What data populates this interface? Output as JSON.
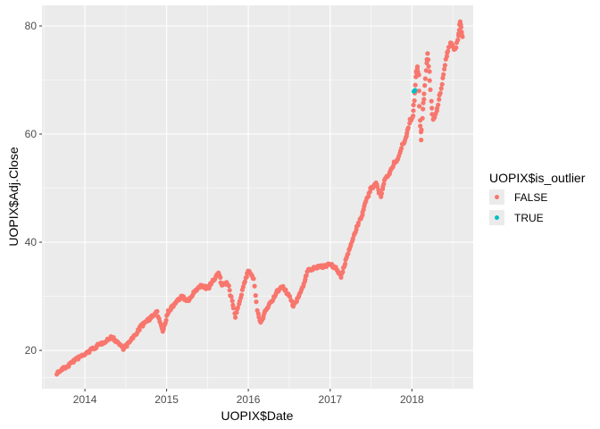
{
  "chart_data": {
    "type": "scatter",
    "xlabel": "UOPIX$Date",
    "ylabel": "UOPIX$Adj.Close",
    "xlim": [
      "2013-06-23",
      "2018-10-02"
    ],
    "ylim": [
      12.9,
      83.8
    ],
    "x_ticks": [
      "2014-01-01",
      "2015-01-01",
      "2016-01-01",
      "2017-01-01",
      "2018-01-01"
    ],
    "x_tick_labels": [
      "2014",
      "2015",
      "2016",
      "2017",
      "2018"
    ],
    "y_ticks": [
      20,
      40,
      60,
      80
    ],
    "y_tick_labels": [
      "20",
      "40",
      "60",
      "80"
    ],
    "legend": {
      "title": "UOPIX$is_outlier",
      "position": "right",
      "items": [
        {
          "label": "FALSE",
          "color": "#F8766D"
        },
        {
          "label": "TRUE",
          "color": "#00BFC4"
        }
      ]
    },
    "grid": true,
    "series": [
      {
        "name": "FALSE",
        "color": "#F8766D",
        "points": [
          [
            "2013-08-30",
            15.8
          ],
          [
            "2013-09-20",
            16.5
          ],
          [
            "2013-10-15",
            17.1
          ],
          [
            "2013-11-10",
            18.0
          ],
          [
            "2013-12-05",
            18.7
          ],
          [
            "2014-01-01",
            19.3
          ],
          [
            "2014-02-05",
            20.3
          ],
          [
            "2014-03-05",
            21.0
          ],
          [
            "2014-04-05",
            21.8
          ],
          [
            "2014-05-01",
            22.4
          ],
          [
            "2014-06-01",
            21.3
          ],
          [
            "2014-06-20",
            20.4
          ],
          [
            "2014-07-10",
            21.1
          ],
          [
            "2014-08-05",
            22.4
          ],
          [
            "2014-09-01",
            24.0
          ],
          [
            "2014-10-01",
            25.4
          ],
          [
            "2014-10-25",
            26.1
          ],
          [
            "2014-11-20",
            27.0
          ],
          [
            "2014-12-05",
            25.0
          ],
          [
            "2014-12-15",
            23.5
          ],
          [
            "2015-01-05",
            27.0
          ],
          [
            "2015-02-05",
            28.6
          ],
          [
            "2015-03-10",
            30.0
          ],
          [
            "2015-04-05",
            29.0
          ],
          [
            "2015-05-01",
            30.6
          ],
          [
            "2015-06-05",
            32.0
          ],
          [
            "2015-07-05",
            31.5
          ],
          [
            "2015-08-01",
            33.0
          ],
          [
            "2015-08-20",
            34.6
          ],
          [
            "2015-09-05",
            32.0
          ],
          [
            "2015-10-01",
            32.4
          ],
          [
            "2015-10-20",
            29.0
          ],
          [
            "2015-11-05",
            26.3
          ],
          [
            "2015-12-01",
            30.5
          ],
          [
            "2015-12-20",
            33.4
          ],
          [
            "2016-01-05",
            34.8
          ],
          [
            "2016-01-25",
            33.2
          ],
          [
            "2016-02-10",
            27.4
          ],
          [
            "2016-02-25",
            25.0
          ],
          [
            "2016-03-20",
            27.4
          ],
          [
            "2016-04-20",
            29.5
          ],
          [
            "2016-05-10",
            31.0
          ],
          [
            "2016-06-01",
            31.8
          ],
          [
            "2016-07-01",
            30.1
          ],
          [
            "2016-07-20",
            28.2
          ],
          [
            "2016-08-15",
            30.0
          ],
          [
            "2016-09-05",
            32.5
          ],
          [
            "2016-09-25",
            34.8
          ],
          [
            "2016-11-01",
            35.3
          ],
          [
            "2016-12-01",
            35.6
          ],
          [
            "2017-01-01",
            35.9
          ],
          [
            "2017-02-01",
            34.9
          ],
          [
            "2017-02-20",
            33.5
          ],
          [
            "2017-03-05",
            35.7
          ],
          [
            "2017-04-01",
            39.5
          ],
          [
            "2017-05-01",
            42.8
          ],
          [
            "2017-05-20",
            44.8
          ],
          [
            "2017-06-10",
            47.5
          ],
          [
            "2017-07-01",
            49.8
          ],
          [
            "2017-07-25",
            50.9
          ],
          [
            "2017-08-15",
            48.5
          ],
          [
            "2017-09-05",
            51.8
          ],
          [
            "2017-09-25",
            52.9
          ],
          [
            "2017-10-15",
            54.8
          ],
          [
            "2017-11-01",
            55.4
          ],
          [
            "2017-11-20",
            57.9
          ],
          [
            "2017-12-10",
            59.9
          ],
          [
            "2017-12-25",
            62.5
          ],
          [
            "2018-01-05",
            63.5
          ],
          [
            "2018-01-12",
            66.2
          ],
          [
            "2018-01-18",
            70.5
          ],
          [
            "2018-01-24",
            72.3
          ],
          [
            "2018-02-01",
            71.0
          ],
          [
            "2018-02-06",
            62.5
          ],
          [
            "2018-02-12",
            59.0
          ],
          [
            "2018-02-18",
            64.5
          ],
          [
            "2018-02-25",
            67.5
          ],
          [
            "2018-03-05",
            72.0
          ],
          [
            "2018-03-12",
            74.7
          ],
          [
            "2018-03-20",
            71.5
          ],
          [
            "2018-03-28",
            66.2
          ],
          [
            "2018-04-05",
            62.5
          ],
          [
            "2018-04-15",
            63.5
          ],
          [
            "2018-04-25",
            64.8
          ],
          [
            "2018-05-05",
            67.0
          ],
          [
            "2018-05-15",
            69.4
          ],
          [
            "2018-05-25",
            72.0
          ],
          [
            "2018-06-05",
            74.5
          ],
          [
            "2018-06-15",
            76.0
          ],
          [
            "2018-06-25",
            77.0
          ],
          [
            "2018-07-05",
            76.0
          ],
          [
            "2018-07-15",
            75.7
          ],
          [
            "2018-07-25",
            77.3
          ],
          [
            "2018-08-01",
            79.5
          ],
          [
            "2018-08-05",
            81.0
          ],
          [
            "2018-08-10",
            79.0
          ],
          [
            "2018-08-15",
            78.0
          ]
        ]
      },
      {
        "name": "TRUE",
        "color": "#00BFC4",
        "points": [
          [
            "2018-01-10",
            67.9
          ],
          [
            "2018-01-15",
            68.1
          ]
        ]
      }
    ]
  }
}
